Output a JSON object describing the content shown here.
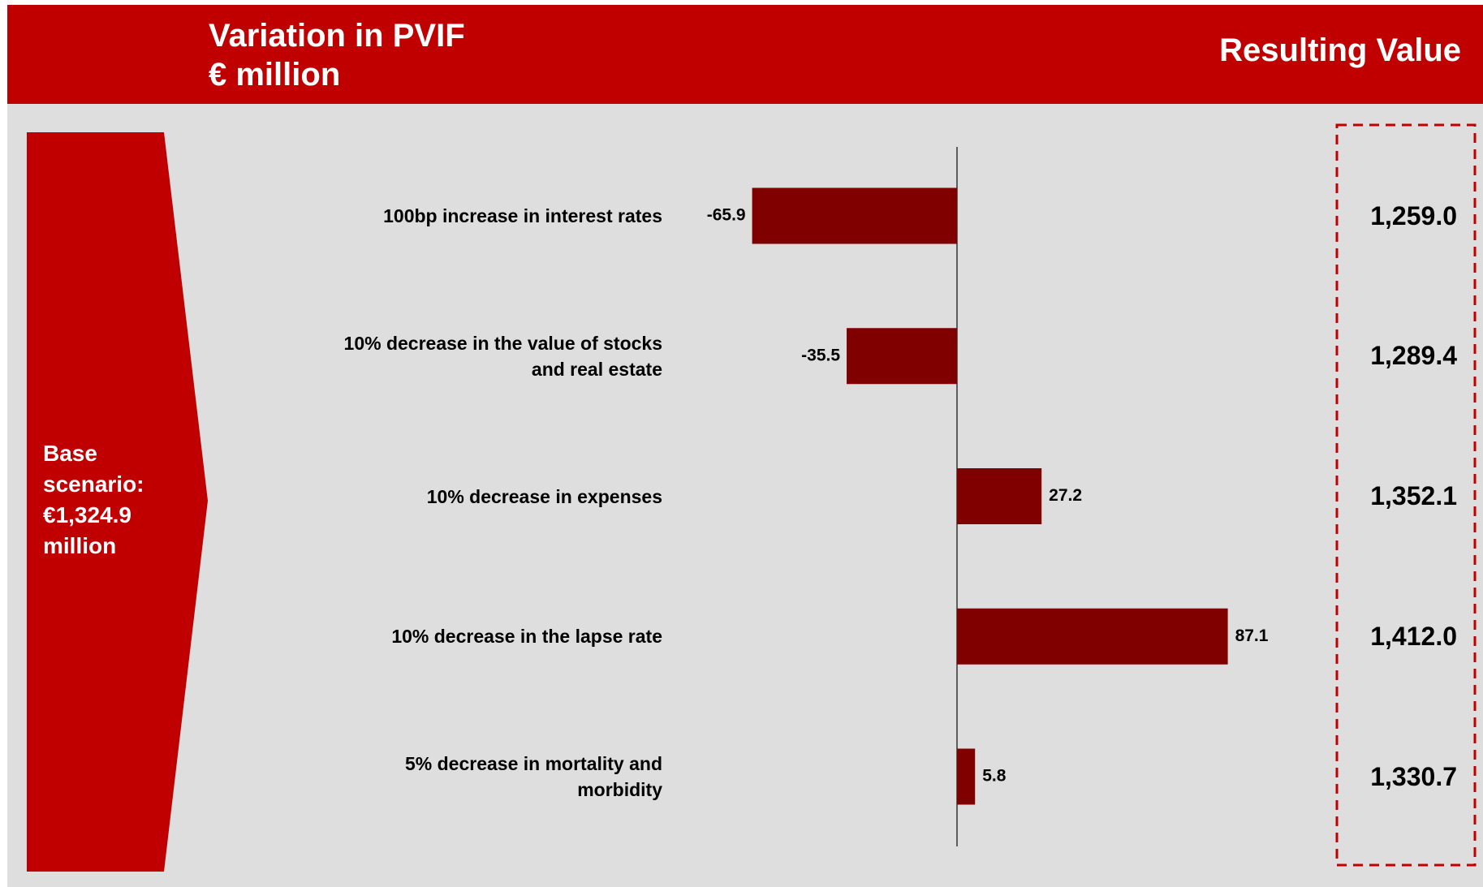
{
  "chart_data": {
    "type": "bar",
    "orientation": "horizontal",
    "title": "Variation in PVIF",
    "subtitle": "€ million",
    "right_header": "Resulting Value",
    "base_note": "Base scenario: €1,324.9 million",
    "categories": [
      "100bp increase in interest rates",
      "10% decrease in the value of stocks and real estate",
      "10% decrease in expenses",
      "10% decrease in the lapse rate",
      "5% decrease in mortality and morbidity"
    ],
    "values": [
      -65.9,
      -35.5,
      27.2,
      87.1,
      5.8
    ],
    "resulting_values": [
      "1,259.0",
      "1,289.4",
      "1,352.1",
      "1,412.0",
      "1,330.7"
    ],
    "color": "#800000",
    "xlim": [
      -100,
      100
    ]
  }
}
